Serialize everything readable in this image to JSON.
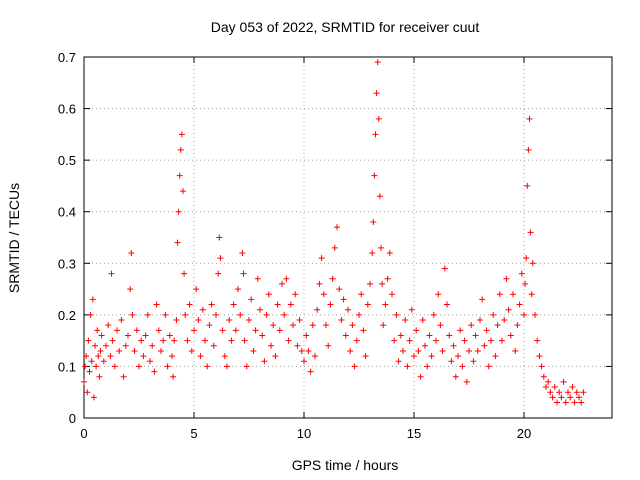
{
  "chart_data": {
    "type": "scatter",
    "title": "Day 053 of 2022, SRMTID for receiver cuut",
    "xlabel": "GPS time / hours",
    "ylabel": "SRMTID / TECUs",
    "xlim": [
      0,
      24
    ],
    "ylim": [
      0,
      0.7
    ],
    "x_ticks": [
      0,
      5,
      10,
      15,
      20
    ],
    "y_ticks": [
      0,
      0.1,
      0.2,
      0.3,
      0.4,
      0.5,
      0.6,
      0.7
    ],
    "grid": true,
    "marker": "+",
    "marker_color": "#ff0000",
    "series": [
      {
        "name": "SRMTID",
        "points": [
          [
            0.0,
            0.07
          ],
          [
            0.05,
            0.1
          ],
          [
            0.1,
            0.12
          ],
          [
            0.15,
            0.05
          ],
          [
            0.2,
            0.15
          ],
          [
            0.25,
            0.09
          ],
          [
            0.3,
            0.2
          ],
          [
            0.35,
            0.11
          ],
          [
            0.4,
            0.23
          ],
          [
            0.45,
            0.04
          ],
          [
            0.5,
            0.14
          ],
          [
            0.55,
            0.1
          ],
          [
            0.6,
            0.17
          ],
          [
            0.65,
            0.12
          ],
          [
            0.7,
            0.08
          ],
          [
            0.75,
            0.13
          ],
          [
            0.8,
            0.16
          ],
          [
            0.9,
            0.11
          ],
          [
            1.0,
            0.14
          ],
          [
            1.1,
            0.18
          ],
          [
            1.2,
            0.12
          ],
          [
            1.25,
            0.28
          ],
          [
            1.3,
            0.15
          ],
          [
            1.4,
            0.1
          ],
          [
            1.5,
            0.17
          ],
          [
            1.6,
            0.13
          ],
          [
            1.7,
            0.19
          ],
          [
            1.8,
            0.08
          ],
          [
            1.9,
            0.14
          ],
          [
            2.0,
            0.16
          ],
          [
            2.1,
            0.25
          ],
          [
            2.15,
            0.32
          ],
          [
            2.2,
            0.2
          ],
          [
            2.3,
            0.13
          ],
          [
            2.4,
            0.17
          ],
          [
            2.5,
            0.1
          ],
          [
            2.6,
            0.15
          ],
          [
            2.7,
            0.12
          ],
          [
            2.8,
            0.16
          ],
          [
            2.9,
            0.2
          ],
          [
            3.0,
            0.11
          ],
          [
            3.1,
            0.14
          ],
          [
            3.2,
            0.09
          ],
          [
            3.3,
            0.22
          ],
          [
            3.4,
            0.17
          ],
          [
            3.5,
            0.13
          ],
          [
            3.6,
            0.15
          ],
          [
            3.7,
            0.2
          ],
          [
            3.8,
            0.1
          ],
          [
            3.9,
            0.16
          ],
          [
            4.0,
            0.12
          ],
          [
            4.05,
            0.08
          ],
          [
            4.1,
            0.15
          ],
          [
            4.2,
            0.19
          ],
          [
            4.25,
            0.34
          ],
          [
            4.3,
            0.4
          ],
          [
            4.35,
            0.47
          ],
          [
            4.4,
            0.52
          ],
          [
            4.45,
            0.55
          ],
          [
            4.5,
            0.44
          ],
          [
            4.55,
            0.28
          ],
          [
            4.6,
            0.2
          ],
          [
            4.7,
            0.15
          ],
          [
            4.8,
            0.22
          ],
          [
            4.9,
            0.13
          ],
          [
            5.0,
            0.17
          ],
          [
            5.1,
            0.25
          ],
          [
            5.2,
            0.19
          ],
          [
            5.3,
            0.12
          ],
          [
            5.4,
            0.21
          ],
          [
            5.5,
            0.15
          ],
          [
            5.6,
            0.1
          ],
          [
            5.7,
            0.18
          ],
          [
            5.8,
            0.22
          ],
          [
            5.9,
            0.14
          ],
          [
            6.0,
            0.2
          ],
          [
            6.1,
            0.28
          ],
          [
            6.15,
            0.35
          ],
          [
            6.2,
            0.31
          ],
          [
            6.3,
            0.17
          ],
          [
            6.4,
            0.12
          ],
          [
            6.5,
            0.1
          ],
          [
            6.6,
            0.19
          ],
          [
            6.7,
            0.15
          ],
          [
            6.8,
            0.22
          ],
          [
            6.9,
            0.17
          ],
          [
            7.0,
            0.25
          ],
          [
            7.1,
            0.2
          ],
          [
            7.2,
            0.32
          ],
          [
            7.25,
            0.28
          ],
          [
            7.3,
            0.15
          ],
          [
            7.4,
            0.1
          ],
          [
            7.5,
            0.19
          ],
          [
            7.6,
            0.23
          ],
          [
            7.7,
            0.13
          ],
          [
            7.8,
            0.17
          ],
          [
            7.9,
            0.27
          ],
          [
            8.0,
            0.21
          ],
          [
            8.1,
            0.16
          ],
          [
            8.2,
            0.11
          ],
          [
            8.3,
            0.2
          ],
          [
            8.4,
            0.24
          ],
          [
            8.5,
            0.14
          ],
          [
            8.6,
            0.18
          ],
          [
            8.7,
            0.12
          ],
          [
            8.8,
            0.22
          ],
          [
            8.9,
            0.17
          ],
          [
            9.0,
            0.26
          ],
          [
            9.1,
            0.2
          ],
          [
            9.2,
            0.27
          ],
          [
            9.3,
            0.15
          ],
          [
            9.4,
            0.22
          ],
          [
            9.5,
            0.18
          ],
          [
            9.6,
            0.24
          ],
          [
            9.7,
            0.14
          ],
          [
            9.8,
            0.19
          ],
          [
            9.9,
            0.13
          ],
          [
            10.0,
            0.11
          ],
          [
            10.1,
            0.16
          ],
          [
            10.2,
            0.13
          ],
          [
            10.3,
            0.09
          ],
          [
            10.4,
            0.18
          ],
          [
            10.5,
            0.12
          ],
          [
            10.6,
            0.21
          ],
          [
            10.7,
            0.26
          ],
          [
            10.8,
            0.31
          ],
          [
            10.9,
            0.24
          ],
          [
            11.0,
            0.18
          ],
          [
            11.1,
            0.14
          ],
          [
            11.2,
            0.22
          ],
          [
            11.3,
            0.27
          ],
          [
            11.4,
            0.33
          ],
          [
            11.5,
            0.37
          ],
          [
            11.6,
            0.25
          ],
          [
            11.7,
            0.19
          ],
          [
            11.8,
            0.23
          ],
          [
            11.9,
            0.16
          ],
          [
            12.0,
            0.21
          ],
          [
            12.1,
            0.13
          ],
          [
            12.2,
            0.18
          ],
          [
            12.3,
            0.1
          ],
          [
            12.4,
            0.15
          ],
          [
            12.5,
            0.2
          ],
          [
            12.6,
            0.24
          ],
          [
            12.7,
            0.17
          ],
          [
            12.8,
            0.12
          ],
          [
            12.9,
            0.22
          ],
          [
            13.0,
            0.26
          ],
          [
            13.1,
            0.32
          ],
          [
            13.15,
            0.38
          ],
          [
            13.2,
            0.47
          ],
          [
            13.25,
            0.55
          ],
          [
            13.3,
            0.63
          ],
          [
            13.35,
            0.69
          ],
          [
            13.4,
            0.58
          ],
          [
            13.45,
            0.43
          ],
          [
            13.5,
            0.33
          ],
          [
            13.55,
            0.26
          ],
          [
            13.6,
            0.18
          ],
          [
            13.7,
            0.22
          ],
          [
            13.8,
            0.27
          ],
          [
            13.9,
            0.32
          ],
          [
            14.0,
            0.24
          ],
          [
            14.1,
            0.15
          ],
          [
            14.2,
            0.2
          ],
          [
            14.3,
            0.11
          ],
          [
            14.4,
            0.16
          ],
          [
            14.5,
            0.13
          ],
          [
            14.6,
            0.19
          ],
          [
            14.7,
            0.1
          ],
          [
            14.8,
            0.15
          ],
          [
            14.9,
            0.21
          ],
          [
            15.0,
            0.12
          ],
          [
            15.1,
            0.17
          ],
          [
            15.2,
            0.13
          ],
          [
            15.3,
            0.08
          ],
          [
            15.4,
            0.19
          ],
          [
            15.5,
            0.14
          ],
          [
            15.6,
            0.1
          ],
          [
            15.7,
            0.16
          ],
          [
            15.8,
            0.12
          ],
          [
            15.9,
            0.2
          ],
          [
            16.0,
            0.15
          ],
          [
            16.1,
            0.24
          ],
          [
            16.2,
            0.18
          ],
          [
            16.3,
            0.13
          ],
          [
            16.4,
            0.29
          ],
          [
            16.5,
            0.22
          ],
          [
            16.6,
            0.16
          ],
          [
            16.7,
            0.11
          ],
          [
            16.8,
            0.14
          ],
          [
            16.9,
            0.08
          ],
          [
            17.0,
            0.12
          ],
          [
            17.1,
            0.17
          ],
          [
            17.2,
            0.1
          ],
          [
            17.3,
            0.15
          ],
          [
            17.4,
            0.07
          ],
          [
            17.5,
            0.13
          ],
          [
            17.6,
            0.18
          ],
          [
            17.7,
            0.11
          ],
          [
            17.8,
            0.16
          ],
          [
            17.9,
            0.13
          ],
          [
            18.0,
            0.19
          ],
          [
            18.1,
            0.23
          ],
          [
            18.2,
            0.14
          ],
          [
            18.3,
            0.17
          ],
          [
            18.4,
            0.1
          ],
          [
            18.5,
            0.15
          ],
          [
            18.6,
            0.2
          ],
          [
            18.7,
            0.12
          ],
          [
            18.8,
            0.18
          ],
          [
            18.9,
            0.24
          ],
          [
            19.0,
            0.15
          ],
          [
            19.1,
            0.19
          ],
          [
            19.2,
            0.27
          ],
          [
            19.3,
            0.21
          ],
          [
            19.4,
            0.16
          ],
          [
            19.5,
            0.24
          ],
          [
            19.6,
            0.13
          ],
          [
            19.7,
            0.18
          ],
          [
            19.8,
            0.22
          ],
          [
            19.9,
            0.28
          ],
          [
            20.0,
            0.2
          ],
          [
            20.05,
            0.26
          ],
          [
            20.1,
            0.31
          ],
          [
            20.15,
            0.45
          ],
          [
            20.2,
            0.52
          ],
          [
            20.25,
            0.58
          ],
          [
            20.3,
            0.36
          ],
          [
            20.35,
            0.24
          ],
          [
            20.4,
            0.3
          ],
          [
            20.5,
            0.2
          ],
          [
            20.6,
            0.15
          ],
          [
            20.7,
            0.12
          ],
          [
            20.8,
            0.1
          ],
          [
            20.9,
            0.08
          ],
          [
            21.0,
            0.06
          ],
          [
            21.1,
            0.07
          ],
          [
            21.2,
            0.05
          ],
          [
            21.3,
            0.04
          ],
          [
            21.4,
            0.06
          ],
          [
            21.5,
            0.03
          ],
          [
            21.6,
            0.05
          ],
          [
            21.7,
            0.04
          ],
          [
            21.8,
            0.07
          ],
          [
            21.9,
            0.03
          ],
          [
            22.0,
            0.05
          ],
          [
            22.1,
            0.04
          ],
          [
            22.2,
            0.06
          ],
          [
            22.3,
            0.03
          ],
          [
            22.4,
            0.05
          ],
          [
            22.5,
            0.04
          ],
          [
            22.6,
            0.03
          ],
          [
            22.7,
            0.05
          ]
        ]
      }
    ]
  }
}
